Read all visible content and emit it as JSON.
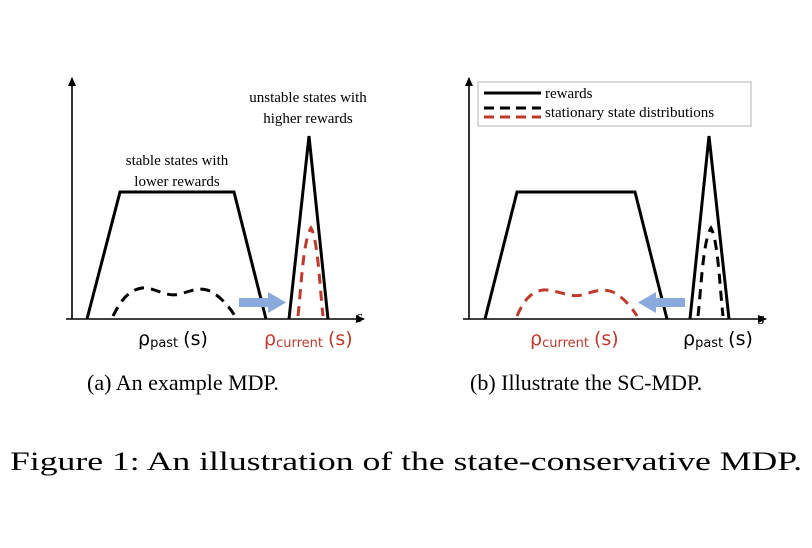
{
  "colors": {
    "ink": "#000000",
    "current_red": "#c0392b",
    "arrow_blue": "#8aa9dc",
    "legend_border": "#b3b3b3"
  },
  "panel_a": {
    "annotation_unstable_line1": "unstable states with",
    "annotation_unstable_line2": "higher rewards",
    "annotation_stable_line1": "stable states with",
    "annotation_stable_line2": "lower rewards",
    "axis_x_label": "s",
    "label_past_rho": "ρ",
    "label_past_sub": "past",
    "label_past_arg": "(s)",
    "label_current_rho": "ρ",
    "label_current_sub": "current",
    "label_current_arg": "(s)",
    "caption": "(a) An example MDP."
  },
  "panel_b": {
    "legend_rewards": "rewards",
    "legend_stationary": "stationary state distributions",
    "axis_x_label": "s",
    "label_current_rho": "ρ",
    "label_current_sub": "current",
    "label_current_arg": "(s)",
    "label_past_rho": "ρ",
    "label_past_sub": "past",
    "label_past_arg": "(s)",
    "caption": "(b) Illustrate the SC-MDP."
  },
  "figure_caption": "Figure 1: An illustration of the state-conservative MDP."
}
